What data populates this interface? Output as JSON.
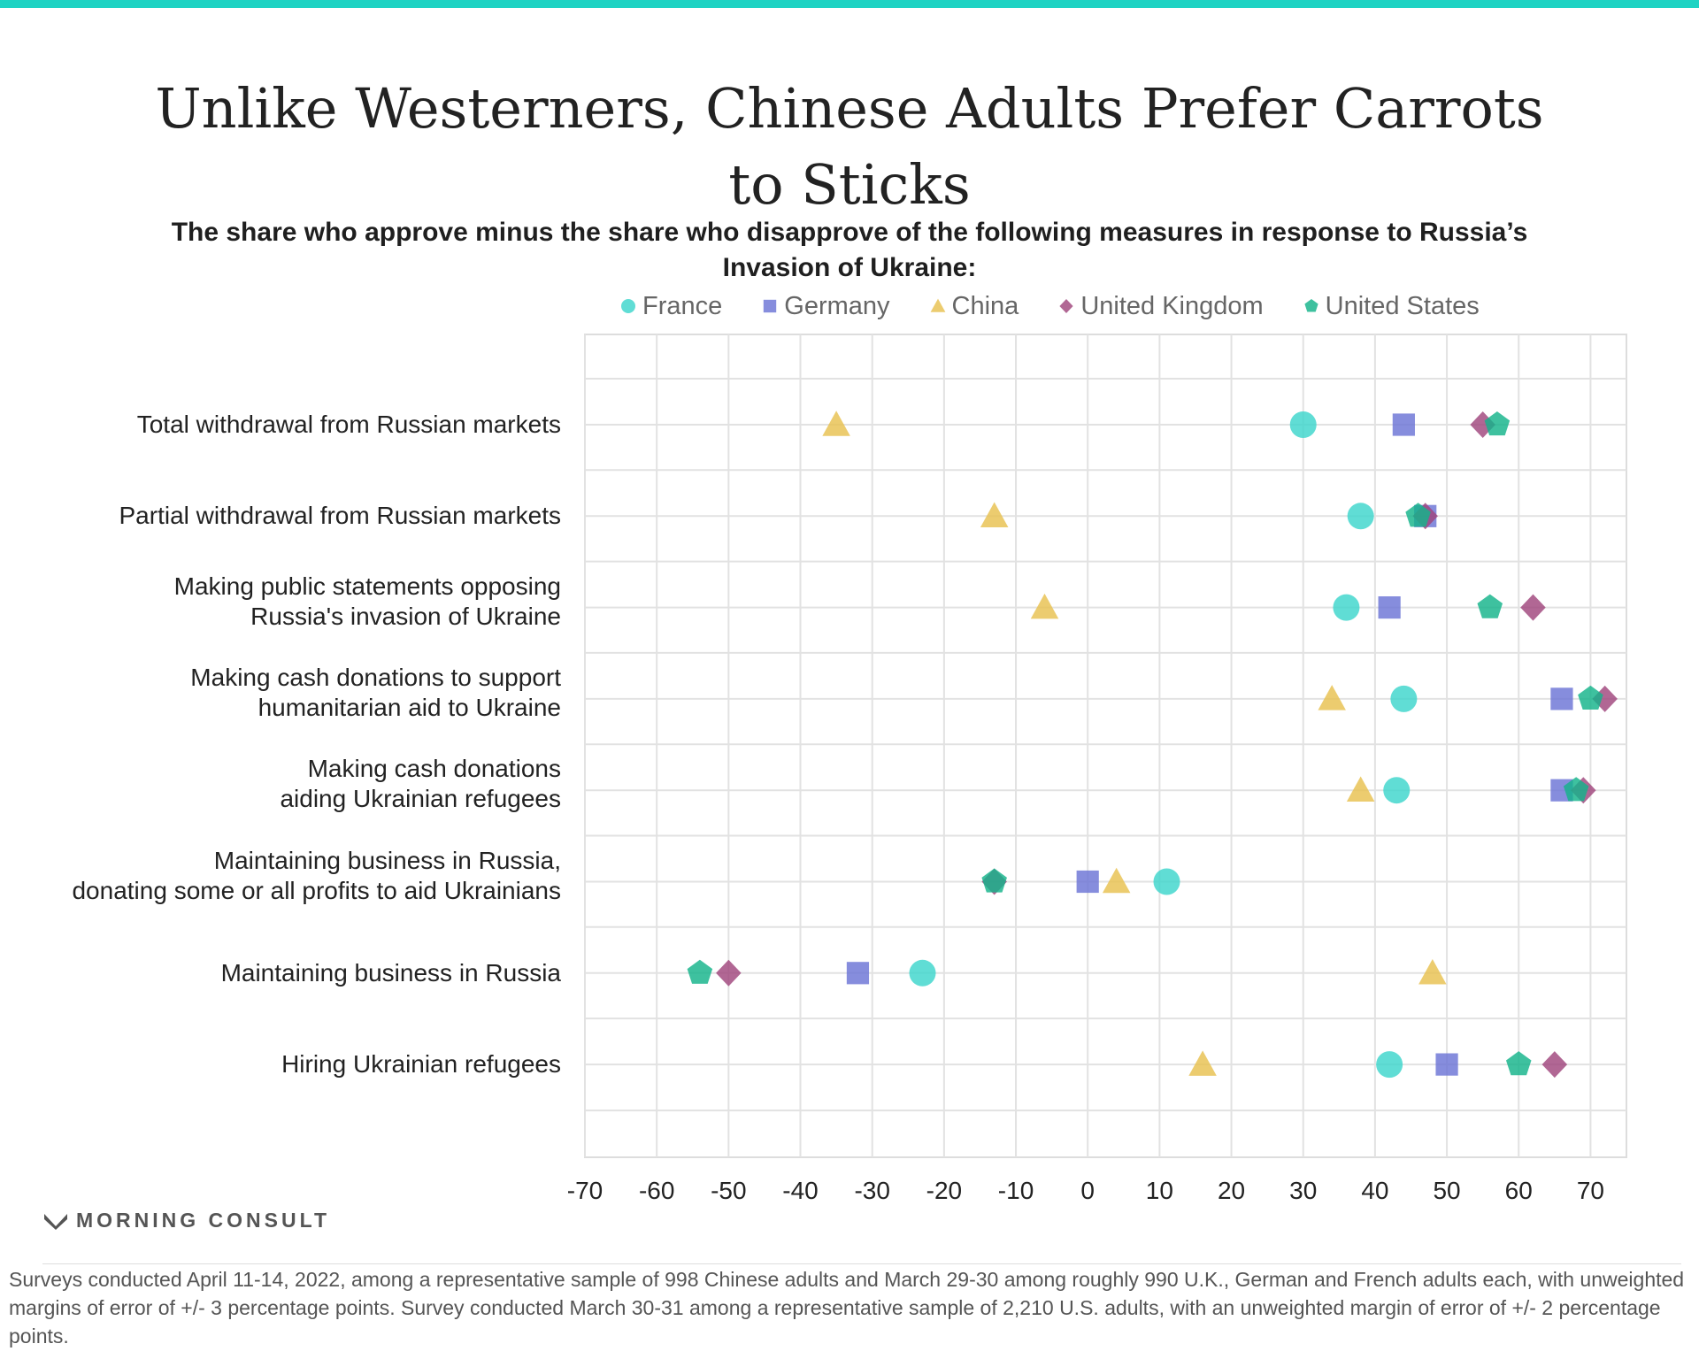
{
  "title": "Unlike Westerners, Chinese Adults Prefer Carrots to Sticks",
  "subtitle": "The share who approve minus the share who disapprove of the following measures in response to Russia’s Invasion of Ukraine:",
  "brand": "MORNING CONSULT",
  "footnote": "Surveys conducted April 11-14, 2022, among a representative sample of 998 Chinese adults and March 29-30 among roughly 990 U.K., German and French adults each, with unweighted margins of error of +/- 3 percentage points. Survey conducted March 30-31 among a representative sample of 2,210 U.S. adults, with an unweighted margin of error of +/- 2 percentage points.",
  "chart_data": {
    "type": "scatter",
    "title": "Unlike Westerners, Chinese Adults Prefer Carrots to Sticks",
    "subtitle": "The share who approve minus the share who disapprove of the following measures in response to Russia’s Invasion of Ukraine:",
    "xlim": [
      -70,
      75
    ],
    "xticks": [
      -70,
      -60,
      -50,
      -40,
      -30,
      -20,
      -10,
      0,
      10,
      20,
      30,
      40,
      50,
      60,
      70
    ],
    "grid": true,
    "legend_position": "top",
    "categories": [
      [
        "Total withdrawal from Russian markets"
      ],
      [
        "Partial withdrawal from Russian markets"
      ],
      [
        "Making public statements opposing",
        "Russia's invasion of Ukraine"
      ],
      [
        "Making cash donations to support",
        "humanitarian aid to Ukraine"
      ],
      [
        "Making cash donations",
        "aiding Ukrainian refugees"
      ],
      [
        "Maintaining business in Russia,",
        "donating some or all profits to aid Ukrainians"
      ],
      [
        "Maintaining business in Russia"
      ],
      [
        "Hiring Ukrainian refugees"
      ]
    ],
    "series": [
      {
        "name": "France",
        "marker": "circle",
        "color": "#3dd6cc",
        "values": [
          30,
          38,
          36,
          44,
          43,
          11,
          -23,
          42
        ]
      },
      {
        "name": "Germany",
        "marker": "square",
        "color": "#6b74d6",
        "values": [
          44,
          47,
          42,
          66,
          66,
          0,
          -32,
          50
        ]
      },
      {
        "name": "China",
        "marker": "triangle",
        "color": "#e8c14f",
        "values": [
          -35,
          -13,
          -6,
          34,
          38,
          4,
          48,
          16
        ]
      },
      {
        "name": "United Kingdom",
        "marker": "diamond",
        "color": "#a0457c",
        "values": [
          55,
          47,
          62,
          72,
          69,
          -13,
          -50,
          65
        ]
      },
      {
        "name": "United States",
        "marker": "pentagon",
        "color": "#14b38a",
        "values": [
          57,
          46,
          56,
          70,
          68,
          -13,
          -54,
          60
        ]
      }
    ]
  }
}
